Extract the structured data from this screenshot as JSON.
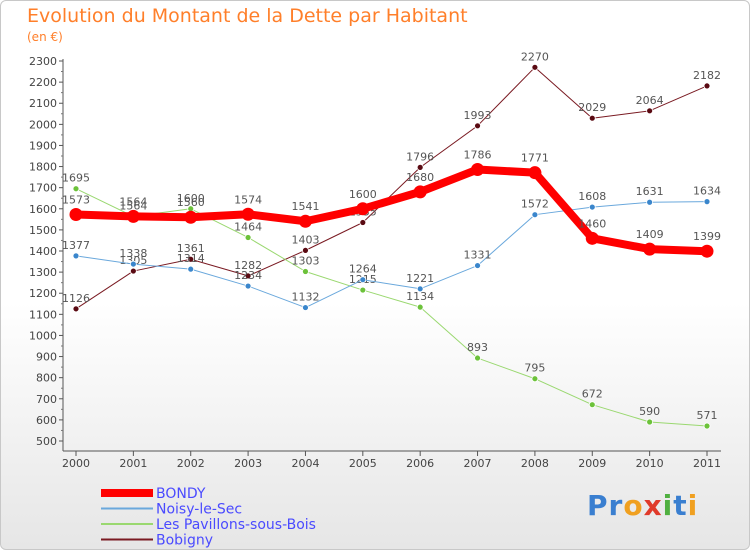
{
  "title": "Evolution du Montant de la Dette par Habitant",
  "subtitle": "(en €)",
  "logo": {
    "letters": [
      {
        "ch": "P",
        "color": "#3a7fd0"
      },
      {
        "ch": "r",
        "color": "#3a7fd0"
      },
      {
        "ch": "o",
        "color": "#f0a020"
      },
      {
        "ch": "x",
        "color": "#e03a2a"
      },
      {
        "ch": "i",
        "color": "#50b040"
      },
      {
        "ch": "t",
        "color": "#3a7fd0"
      },
      {
        "ch": "i",
        "color": "#f0a020"
      }
    ]
  },
  "chart_data": {
    "type": "line",
    "x": [
      "2000",
      "2001",
      "2002",
      "2003",
      "2004",
      "2005",
      "2006",
      "2007",
      "2008",
      "2009",
      "2010",
      "2011"
    ],
    "ylim": [
      500,
      2300
    ],
    "yticks": [
      500,
      600,
      700,
      800,
      900,
      1000,
      1100,
      1200,
      1300,
      1400,
      1500,
      1600,
      1700,
      1800,
      1900,
      2000,
      2100,
      2200,
      2300
    ],
    "grid": false,
    "legend_position": "bottom-left",
    "series": [
      {
        "name": "Bobigny",
        "color": "#7a1a22",
        "marker": "#5a0a12",
        "width": 1,
        "values": [
          1126,
          1305,
          1361,
          1282,
          1403,
          1535,
          1796,
          1993,
          2270,
          2029,
          2064,
          2182
        ],
        "labels": [
          "1126",
          "1305",
          "1361",
          "1282",
          "1403",
          "1535",
          "1796",
          "1993",
          "2270",
          "2029",
          "2064",
          "2182"
        ]
      },
      {
        "name": "Les Pavillons-sous-Bois",
        "color": "#9ad870",
        "marker": "#6cc23a",
        "width": 1,
        "values": [
          1695,
          1564,
          1600,
          1464,
          1303,
          1215,
          1134,
          893,
          795,
          672,
          590,
          571
        ],
        "labels": [
          "1695",
          "1564",
          "1600",
          "1464",
          "1303",
          "1215",
          "1134",
          "893",
          "795",
          "672",
          "590",
          "571"
        ]
      },
      {
        "name": "Noisy-le-Sec",
        "color": "#6aa8dc",
        "marker": "#3a86cc",
        "width": 1,
        "values": [
          1377,
          1338,
          1314,
          1234,
          1132,
          1264,
          1221,
          1331,
          1572,
          1608,
          1631,
          1634
        ],
        "labels": [
          "1377",
          "1338",
          "1314",
          "1234",
          "1132",
          "1264",
          "1221",
          "1331",
          "1572",
          "1608",
          "1631",
          "1634"
        ]
      },
      {
        "name": "BONDY",
        "color": "#ff0000",
        "marker": "#ff0000",
        "width": 8,
        "values": [
          1573,
          1564,
          1560,
          1574,
          1541,
          1600,
          1680,
          1786,
          1771,
          1460,
          1409,
          1399
        ],
        "labels": [
          "1573",
          "1564",
          "1560",
          "1574",
          "1541",
          "1600",
          "1680",
          "1786",
          "1771",
          "1460",
          "1409",
          "1399"
        ]
      }
    ],
    "legend": [
      {
        "name": "BONDY",
        "color": "#ff0000",
        "width": 8
      },
      {
        "name": "Noisy-le-Sec",
        "color": "#6aa8dc",
        "width": 2
      },
      {
        "name": "Les Pavillons-sous-Bois",
        "color": "#9ad870",
        "width": 2
      },
      {
        "name": "Bobigny",
        "color": "#7a1a22",
        "width": 2
      }
    ]
  }
}
